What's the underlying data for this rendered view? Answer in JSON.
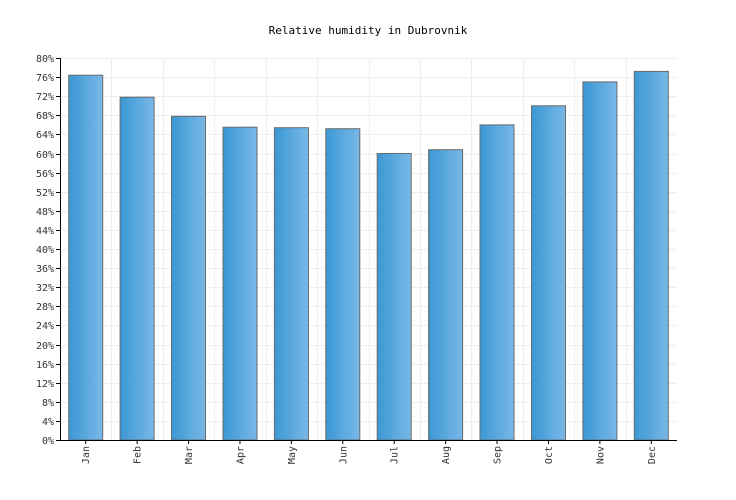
{
  "chart_data": {
    "type": "bar",
    "title": "Relative humidity in Dubrovnik",
    "xlabel": "",
    "ylabel": "",
    "categories": [
      "Jan",
      "Feb",
      "Mar",
      "Apr",
      "May",
      "Jun",
      "Jul",
      "Aug",
      "Sep",
      "Oct",
      "Nov",
      "Dec"
    ],
    "values": [
      76.4,
      71.8,
      67.8,
      65.5,
      65.4,
      65.2,
      60.0,
      60.8,
      66.0,
      70.0,
      75.0,
      77.2
    ],
    "ylim": [
      0,
      80
    ],
    "ytick_step": 4,
    "ytick_suffix": "%",
    "grid": true,
    "legend": "none",
    "colors": {
      "bar_light": "#7ab8e8",
      "bar_dark": "#3a98d4",
      "bar_edge": "#6a6a6a",
      "grid": "#eeeeee",
      "axis": "#000000"
    }
  }
}
